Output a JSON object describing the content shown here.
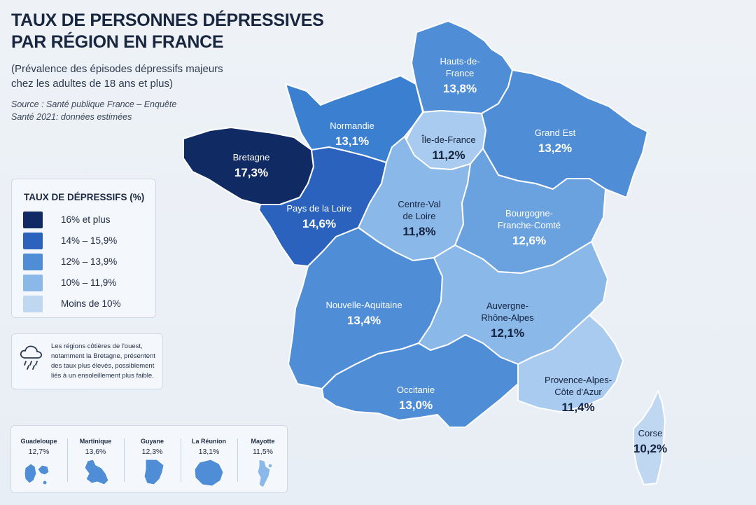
{
  "title": "TAUX DE PERSONNES DÉPRESSIVES\nPAR RÉGION EN FRANCE",
  "subtitle": "(Prévalence des épisodes dépressifs majeurs\nchez les adultes de 18 ans et plus)",
  "source": "Source : Santé publique France – Enquête\nSanté 2021: données estimées",
  "legend": {
    "title": "TAUX DE DÉPRESSIFS (%)",
    "items": [
      {
        "label": "16% et plus",
        "color": "#102a63"
      },
      {
        "label": "14% – 15,9%",
        "color": "#2a62bd"
      },
      {
        "label": "12% – 13,9%",
        "color": "#4f8ed6"
      },
      {
        "label": "10% – 11,9%",
        "color": "#8ab8e8"
      },
      {
        "label": "Moins de 10%",
        "color": "#bfd7f1"
      }
    ]
  },
  "note": {
    "icon": "rain-cloud-icon",
    "text": "Les régions côtières de l'ouest, notamment la Bretagne, présentent des taux plus élevés, possiblement liés à un ensoleillement plus faible."
  },
  "regions": {
    "hauts_de_france": {
      "name": "Hauts-de-\nFrance",
      "value": "13,8%",
      "color": "#4f8ed6"
    },
    "normandie": {
      "name": "Normandie",
      "value": "13,1%",
      "color": "#3b7fd0"
    },
    "ile_de_france": {
      "name": "Île-de-France",
      "value": "11,2%",
      "color": "#a9cbef"
    },
    "grand_est": {
      "name": "Grand Est",
      "value": "13,2%",
      "color": "#4f8ed6"
    },
    "bretagne": {
      "name": "Bretagne",
      "value": "17,3%",
      "color": "#102a63"
    },
    "pays_de_la_loire": {
      "name": "Pays de la Loire",
      "value": "14,6%",
      "color": "#2a62bd"
    },
    "centre_val_de_loire": {
      "name": "Centre-Val\nde Loire",
      "value": "11,8%",
      "color": "#8ab8e8"
    },
    "bourgogne_franche_comte": {
      "name": "Bourgogne-\nFranche-Comté",
      "value": "12,6%",
      "color": "#6aa2e0"
    },
    "nouvelle_aquitaine": {
      "name": "Nouvelle-Aquitaine",
      "value": "13,4%",
      "color": "#4f8ed6"
    },
    "auvergne_rhone_alpes": {
      "name": "Auvergne-\nRhône-Alpes",
      "value": "12,1%",
      "color": "#8ab8e8"
    },
    "occitanie": {
      "name": "Occitanie",
      "value": "13,0%",
      "color": "#4f8ed6"
    },
    "paca": {
      "name": "Provence-Alpes-\nCôte d'Azur",
      "value": "11,4%",
      "color": "#a9cbef"
    },
    "corse": {
      "name": "Corse",
      "value": "10,2%",
      "color": "#bfd7f1"
    }
  },
  "overseas": [
    {
      "name": "Guadeloupe",
      "value": "12,7%",
      "color": "#4f8ed6"
    },
    {
      "name": "Martinique",
      "value": "13,6%",
      "color": "#4f8ed6"
    },
    {
      "name": "Guyane",
      "value": "12,3%",
      "color": "#4f8ed6"
    },
    {
      "name": "La Réunion",
      "value": "13,1%",
      "color": "#4f8ed6"
    },
    {
      "name": "Mayotte",
      "value": "11,5%",
      "color": "#8ab8e8"
    }
  ]
}
